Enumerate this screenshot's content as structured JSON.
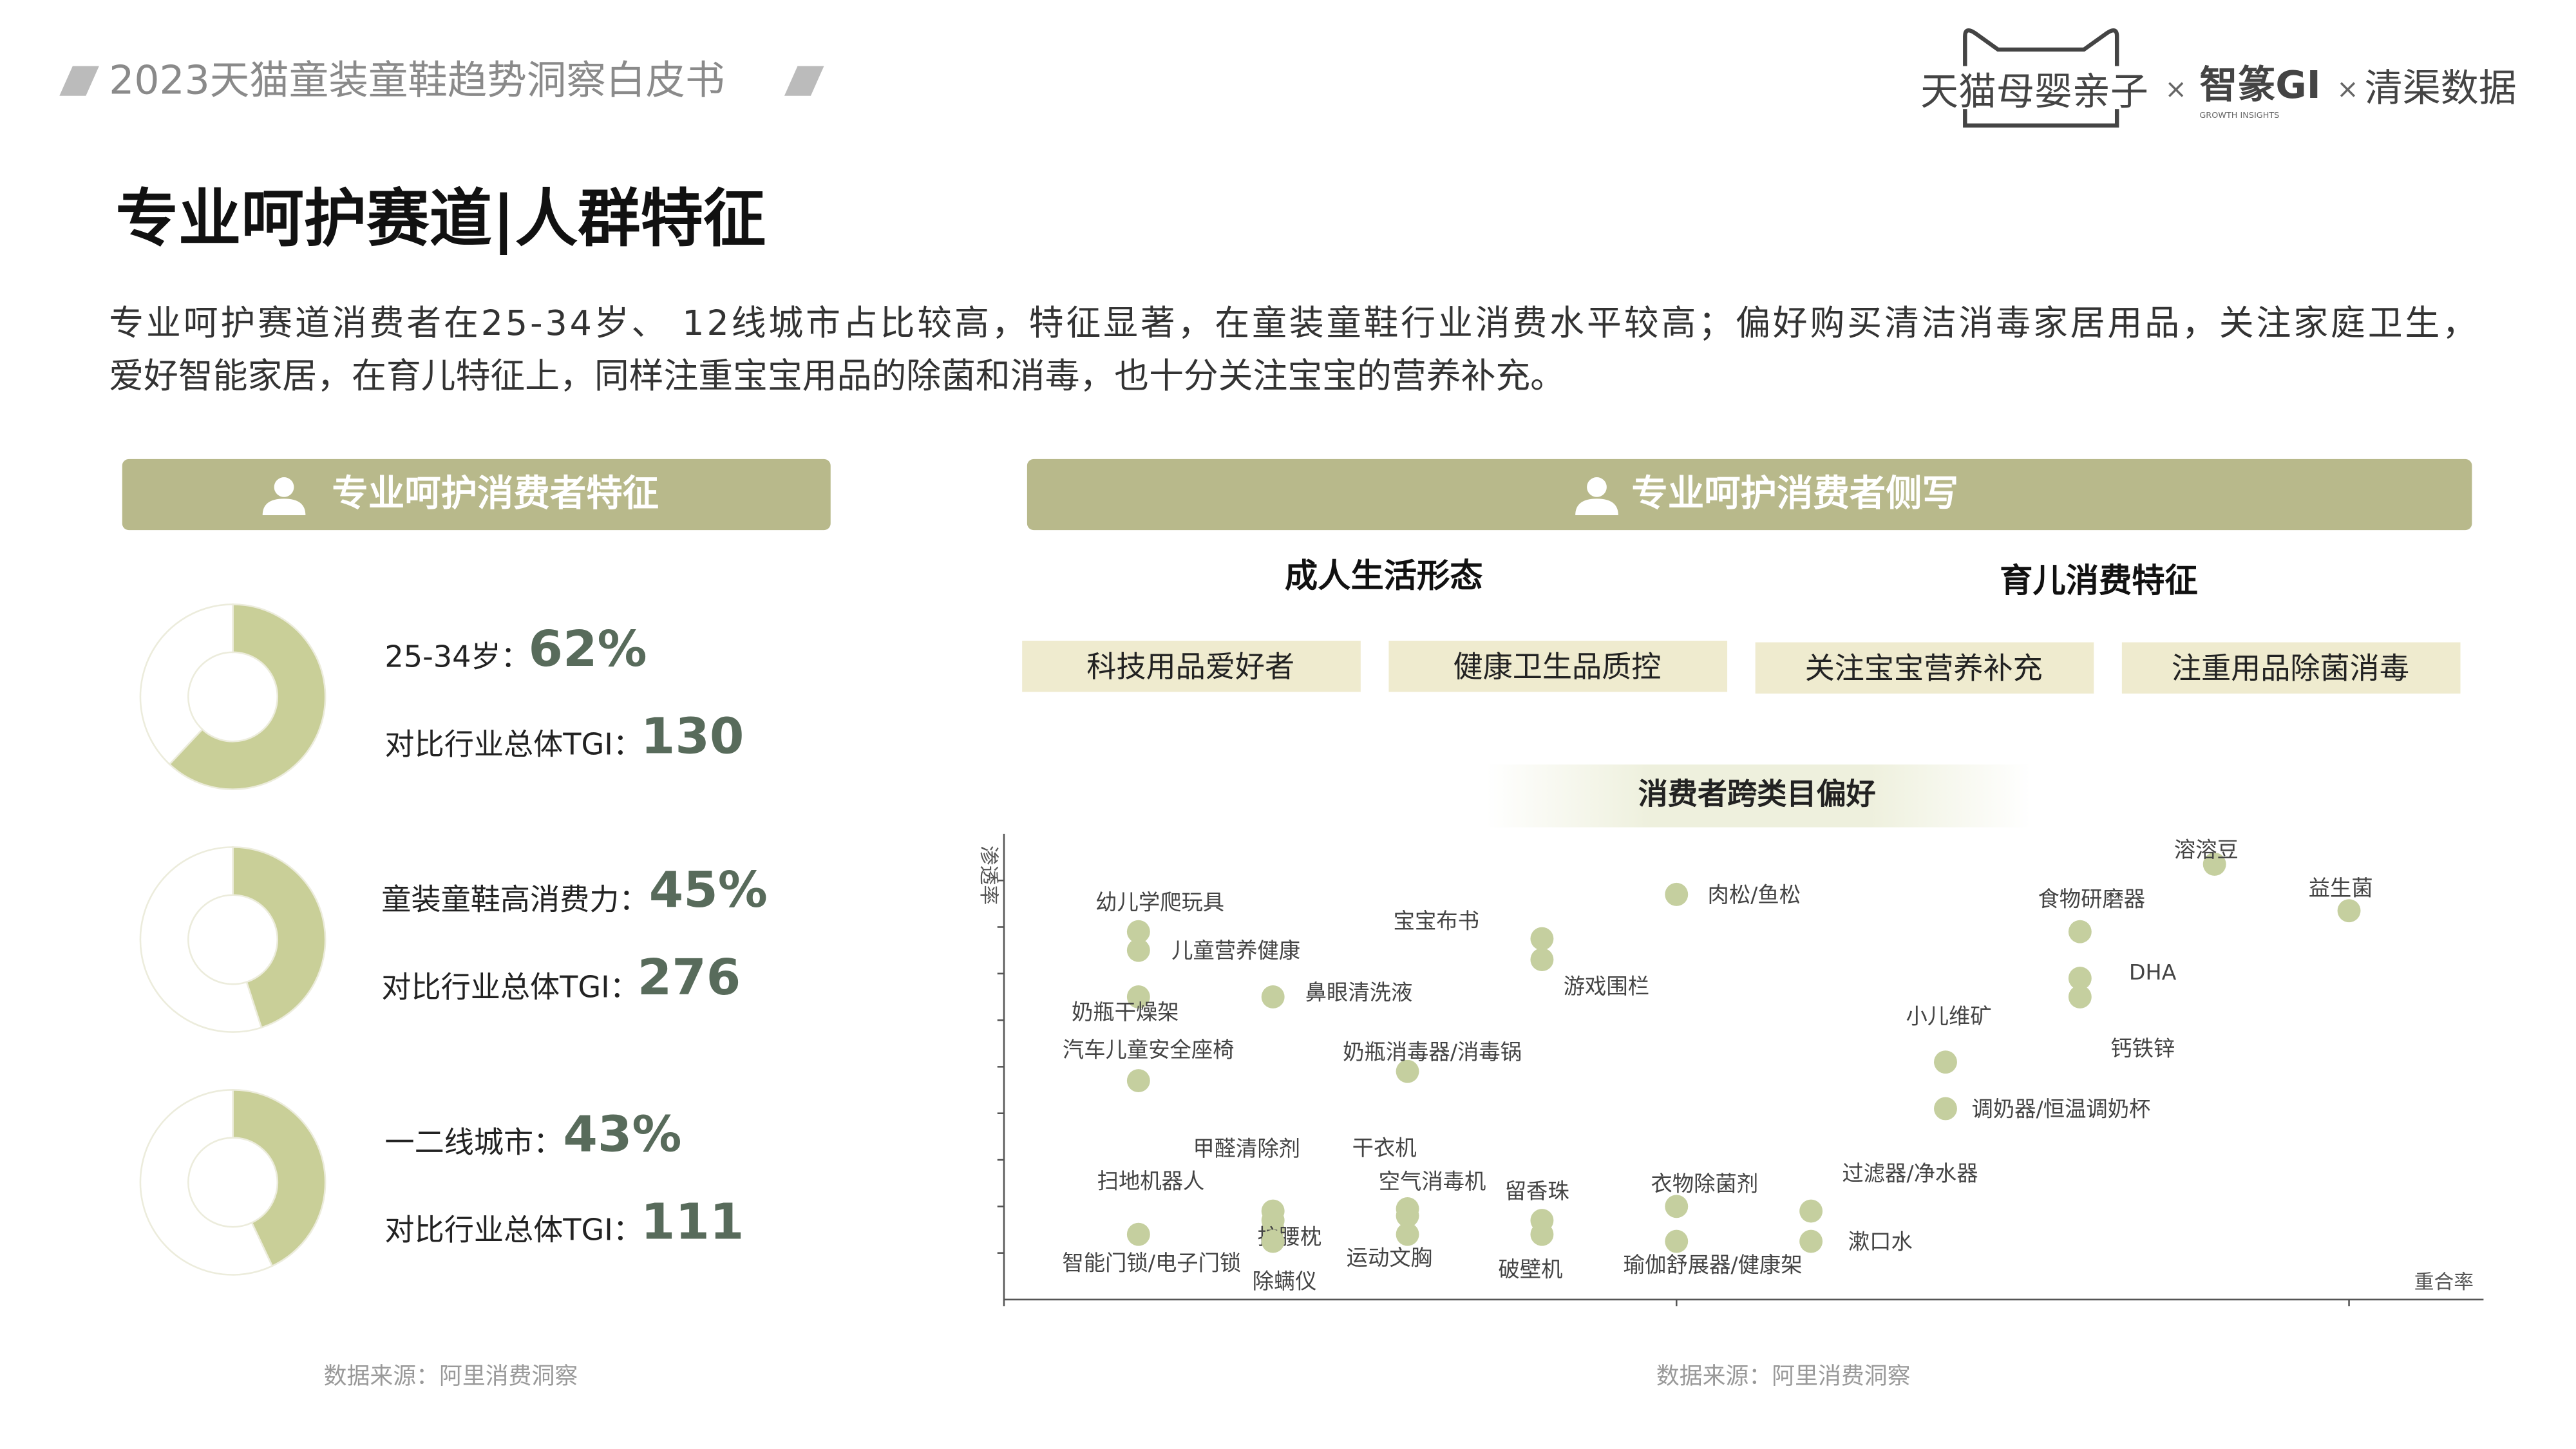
{
  "header": {
    "title": "2023天猫童装童鞋趋势洞察白皮书",
    "logo": [
      "天猫母婴亲子",
      "×",
      "智篆GI",
      "GROWTH INSIGHTS",
      "×",
      "清渠数据"
    ]
  },
  "heading": "专业呵护赛道|人群特征",
  "paragraph": [
    "专业呵护赛道消费者在25-34岁、 12线城市占比较高，特征显著，在童装童鞋行业消费水平较高；偏好购买清洁消毒家居用品，关注家庭卫生，",
    "爱好智能家居，在育儿特征上，同样注重宝宝用品的除菌和消毒，也十分关注宝宝的营养补充。"
  ],
  "left_panel": {
    "title": "专业呵护消费者特征"
  },
  "right_panel": {
    "title": "专业呵护消费者侧写",
    "groups": [
      {
        "title": "成人生活形态",
        "tags": [
          "科技用品爱好者",
          "健康卫生品质控"
        ]
      },
      {
        "title": "育儿消费特征",
        "tags": [
          "关注宝宝营养补充",
          "注重用品除菌消毒"
        ]
      }
    ]
  },
  "chart_data": [
    {
      "type": "donut",
      "categories": [
        "25-34岁：",
        null
      ],
      "values": [
        62,
        38
      ],
      "value_labels": [
        "62%",
        null
      ],
      "colors": [
        "#c9cf98",
        "#ffffff"
      ],
      "tgi_label": "对比行业总体TGI：",
      "tgi": 130
    },
    {
      "type": "donut",
      "categories": [
        "童装童鞋高消费力：",
        null
      ],
      "values": [
        45,
        55
      ],
      "value_labels": [
        "45%",
        null
      ],
      "colors": [
        "#c9cf98",
        "#ffffff"
      ],
      "tgi_label": "对比行业总体TGI：",
      "tgi": 276
    },
    {
      "type": "donut",
      "categories": [
        "一二线城市：",
        null
      ],
      "values": [
        43,
        57
      ],
      "value_labels": [
        "43%",
        null
      ],
      "colors": [
        "#c9cf98",
        "#ffffff"
      ],
      "tgi_label": "对比行业总体TGI：",
      "tgi": 111
    },
    {
      "type": "scatter",
      "title": "消费者跨类目偏好",
      "x_label": "重合率",
      "y_label": "渗透率",
      "color": "#c5cf9f",
      "labels": [
        "幼儿学爬玩具",
        "儿童营养健康",
        "奶瓶干燥架",
        "汽车儿童安全座椅",
        "智能门锁/电子门锁",
        "鼻眼清洗液",
        "宝宝布书",
        "游戏围栏",
        "肉松/鱼松",
        "奶瓶消毒器/消毒锅",
        "甲醛清除剂",
        "扫地机器人",
        "护腰枕",
        "除螨仪",
        "干衣机",
        "空气消毒机",
        "运动文胸",
        "留香珠",
        "破壁机",
        "衣物除菌剂",
        "瑜伽舒展器/健康架",
        "过滤器/净水器",
        "漱口水",
        "小儿维矿",
        "调奶器/恒温调奶杯",
        "食物研磨器",
        "DHA",
        "钙铁锌",
        "溶溶豆",
        "益生菌"
      ],
      "x": [
        0.2,
        0.2,
        0.2,
        0.2,
        0.2,
        0.4,
        0.8,
        0.8,
        1.0,
        0.6,
        0.4,
        0.4,
        0.4,
        0.4,
        0.6,
        0.6,
        0.6,
        0.8,
        0.8,
        1.0,
        1.0,
        1.2,
        1.2,
        1.4,
        1.4,
        1.6,
        1.6,
        1.6,
        1.8,
        2.0
      ],
      "values": [
        7.9,
        7.5,
        6.5,
        4.7,
        1.4,
        6.5,
        7.75,
        7.3,
        8.7,
        4.9,
        1.9,
        1.7,
        1.5,
        1.25,
        1.95,
        1.8,
        1.4,
        1.7,
        1.4,
        2.0,
        1.25,
        1.9,
        1.25,
        5.1,
        4.1,
        7.9,
        6.9,
        6.5,
        9.35,
        8.35
      ],
      "xlim": [
        0,
        2.2
      ],
      "xticks": [
        0,
        1,
        2
      ],
      "ylim": [
        0,
        10
      ],
      "yticks": [
        1,
        2,
        3,
        4,
        5,
        6,
        7,
        8,
        9
      ]
    }
  ],
  "sources": [
    "数据来源：阿里消费洞察",
    "数据来源：阿里消费洞察"
  ]
}
